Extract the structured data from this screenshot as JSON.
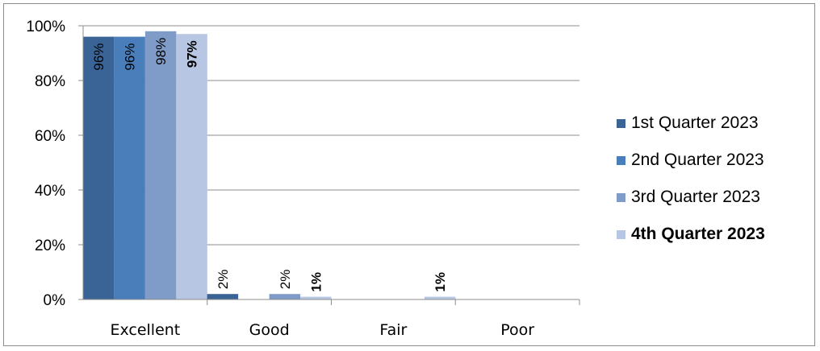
{
  "chart_data": {
    "type": "bar",
    "categories": [
      "Excellent",
      "Good",
      "Fair",
      "Poor"
    ],
    "series": [
      {
        "name": "1st Quarter 2023",
        "values": [
          96,
          2,
          0,
          0
        ],
        "labels": [
          "96%",
          "2%",
          "",
          ""
        ],
        "color": "#3b6496",
        "bold": false
      },
      {
        "name": "2nd Quarter 2023",
        "values": [
          96,
          0,
          0,
          0
        ],
        "labels": [
          "96%",
          "",
          "",
          ""
        ],
        "color": "#4a7ebb",
        "bold": false
      },
      {
        "name": "3rd Quarter 2023",
        "values": [
          98,
          2,
          0,
          0
        ],
        "labels": [
          "98%",
          "2%",
          "",
          ""
        ],
        "color": "#7f9cc9",
        "bold": false
      },
      {
        "name": "4th Quarter 2023",
        "values": [
          97,
          1,
          1,
          0
        ],
        "labels": [
          "97%",
          "1%",
          "1%",
          ""
        ],
        "color": "#b7c7e3",
        "bold": true
      }
    ],
    "ylim": [
      0,
      100
    ],
    "yticks": [
      "0%",
      "20%",
      "40%",
      "60%",
      "80%",
      "100%"
    ],
    "ytick_values": [
      0,
      20,
      40,
      60,
      80,
      100
    ],
    "grid": true,
    "legend": "right"
  }
}
